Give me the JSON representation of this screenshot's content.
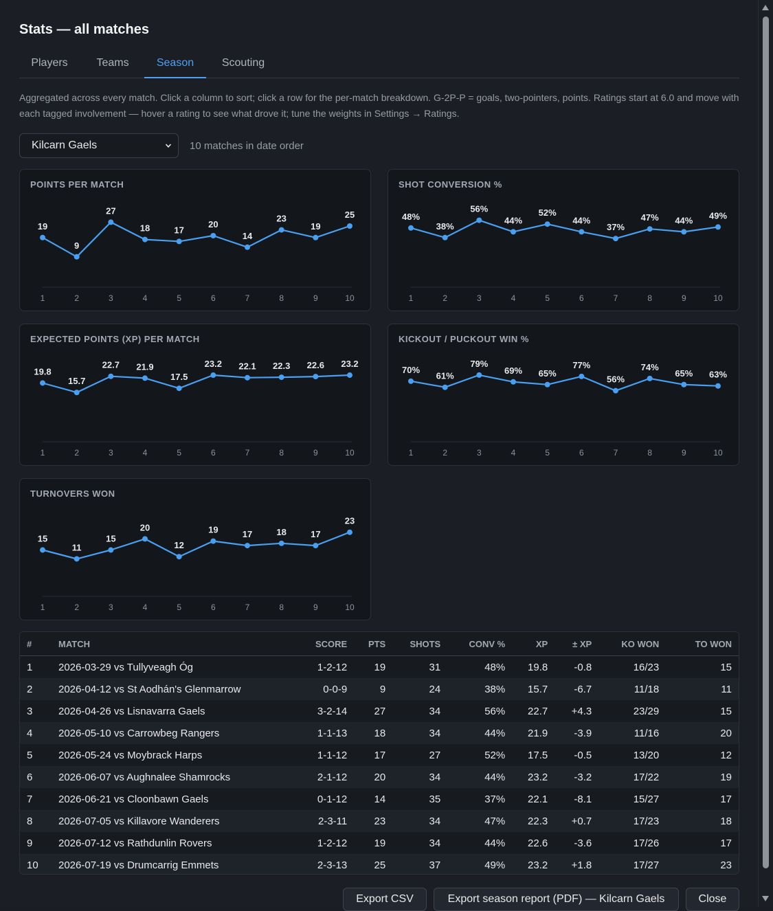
{
  "dialog": {
    "title": "Stats — all matches",
    "tabs": [
      {
        "label": "Players"
      },
      {
        "label": "Teams"
      },
      {
        "label": "Season"
      },
      {
        "label": "Scouting"
      }
    ],
    "active_tab": "Season",
    "description": "Aggregated across every match. Click a column to sort; click a row for the per-match breakdown. G-2P-P = goals, two-pointers, points. Ratings start at 6.0 and move with each tagged involvement — hover a rating to see what drove it; tune the weights in Settings → Ratings.",
    "team_select": {
      "value": "Kilcarn Gaels"
    },
    "match_count": "10 matches in date order"
  },
  "chart_data": [
    {
      "type": "line",
      "title": "POINTS PER MATCH",
      "x": [
        1,
        2,
        3,
        4,
        5,
        6,
        7,
        8,
        9,
        10
      ],
      "values": [
        19,
        9,
        27,
        18,
        17,
        20,
        14,
        23,
        19,
        25
      ],
      "labels": [
        "19",
        "9",
        "27",
        "18",
        "17",
        "20",
        "14",
        "23",
        "19",
        "25"
      ],
      "ylim": [
        0,
        30
      ]
    },
    {
      "type": "line",
      "title": "SHOT CONVERSION %",
      "x": [
        1,
        2,
        3,
        4,
        5,
        6,
        7,
        8,
        9,
        10
      ],
      "values": [
        48,
        38,
        56,
        44,
        52,
        44,
        37,
        47,
        44,
        49
      ],
      "labels": [
        "48%",
        "38%",
        "56%",
        "44%",
        "52%",
        "44%",
        "37%",
        "47%",
        "44%",
        "49%"
      ],
      "ylim": [
        0,
        60
      ]
    },
    {
      "type": "line",
      "title": "EXPECTED POINTS (XP) PER MATCH",
      "x": [
        1,
        2,
        3,
        4,
        5,
        6,
        7,
        8,
        9,
        10
      ],
      "values": [
        19.8,
        15.7,
        22.7,
        21.9,
        17.5,
        23.2,
        22.1,
        22.3,
        22.6,
        23.2
      ],
      "labels": [
        "19.8",
        "15.7",
        "22.7",
        "21.9",
        "17.5",
        "23.2",
        "22.1",
        "22.3",
        "22.6",
        "23.2"
      ],
      "ylim": [
        0,
        25
      ]
    },
    {
      "type": "line",
      "title": "KICKOUT / PUCKOUT WIN %",
      "x": [
        1,
        2,
        3,
        4,
        5,
        6,
        7,
        8,
        9,
        10
      ],
      "values": [
        70,
        61,
        79,
        69,
        65,
        77,
        56,
        74,
        65,
        63
      ],
      "labels": [
        "70%",
        "61%",
        "79%",
        "69%",
        "65%",
        "77%",
        "56%",
        "74%",
        "65%",
        "63%"
      ],
      "ylim": [
        0,
        85
      ]
    },
    {
      "type": "line",
      "title": "TURNOVERS WON",
      "x": [
        1,
        2,
        3,
        4,
        5,
        6,
        7,
        8,
        9,
        10
      ],
      "values": [
        15,
        11,
        15,
        20,
        12,
        19,
        17,
        18,
        17,
        23
      ],
      "labels": [
        "15",
        "11",
        "15",
        "20",
        "12",
        "19",
        "17",
        "18",
        "17",
        "23"
      ],
      "ylim": [
        0,
        26
      ]
    }
  ],
  "table": {
    "headers": [
      "#",
      "MATCH",
      "SCORE",
      "PTS",
      "SHOTS",
      "CONV %",
      "XP",
      "± XP",
      "KO WON",
      "TO WON"
    ],
    "rows": [
      [
        "1",
        "2026-03-29 vs Tullyveagh Óg",
        "1-2-12",
        "19",
        "31",
        "48%",
        "19.8",
        "-0.8",
        "16/23",
        "15"
      ],
      [
        "2",
        "2026-04-12 vs St Aodhán's Glenmarrow",
        "0-0-9",
        "9",
        "24",
        "38%",
        "15.7",
        "-6.7",
        "11/18",
        "11"
      ],
      [
        "3",
        "2026-04-26 vs Lisnavarra Gaels",
        "3-2-14",
        "27",
        "34",
        "56%",
        "22.7",
        "+4.3",
        "23/29",
        "15"
      ],
      [
        "4",
        "2026-05-10 vs Carrowbeg Rangers",
        "1-1-13",
        "18",
        "34",
        "44%",
        "21.9",
        "-3.9",
        "11/16",
        "20"
      ],
      [
        "5",
        "2026-05-24 vs Moybrack Harps",
        "1-1-12",
        "17",
        "27",
        "52%",
        "17.5",
        "-0.5",
        "13/20",
        "12"
      ],
      [
        "6",
        "2026-06-07 vs Aughnalee Shamrocks",
        "2-1-12",
        "20",
        "34",
        "44%",
        "23.2",
        "-3.2",
        "17/22",
        "19"
      ],
      [
        "7",
        "2026-06-21 vs Cloonbawn Gaels",
        "0-1-12",
        "14",
        "35",
        "37%",
        "22.1",
        "-8.1",
        "15/27",
        "17"
      ],
      [
        "8",
        "2026-07-05 vs Killavore Wanderers",
        "2-3-11",
        "23",
        "34",
        "47%",
        "22.3",
        "+0.7",
        "17/23",
        "18"
      ],
      [
        "9",
        "2026-07-12 vs Rathdunlin Rovers",
        "1-2-12",
        "19",
        "34",
        "44%",
        "22.6",
        "-3.6",
        "17/26",
        "17"
      ],
      [
        "10",
        "2026-07-19 vs Drumcarrig Emmets",
        "2-3-13",
        "25",
        "37",
        "49%",
        "23.2",
        "+1.8",
        "17/27",
        "23"
      ]
    ]
  },
  "footer": {
    "export_csv": "Export CSV",
    "export_pdf": "Export season report (PDF) — Kilcarn Gaels",
    "close": "Close"
  },
  "colors": {
    "accent": "#4ea1f3",
    "line": "#4a9ff0",
    "background": "#1b1e24",
    "card": "#13161b"
  },
  "icons": {
    "select": "chevron-down-icon",
    "scroll_up": "scroll-up-arrow-icon",
    "scroll_down": "scroll-down-arrow-icon"
  }
}
